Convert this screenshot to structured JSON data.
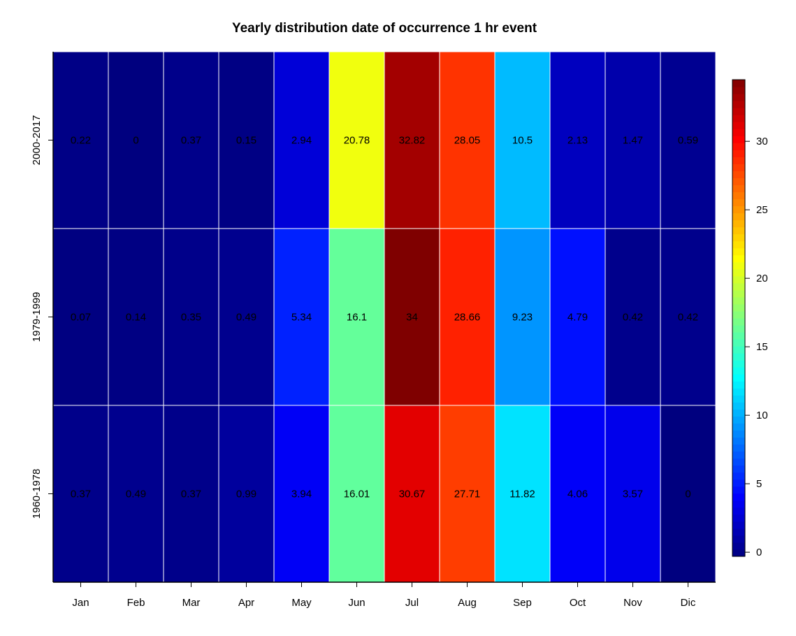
{
  "chart_data": {
    "type": "heatmap",
    "title": "Yearly distribution date of occurrence 1 hr event",
    "xlabel": "",
    "ylabel": "",
    "x_categories": [
      "Jan",
      "Feb",
      "Mar",
      "Apr",
      "May",
      "Jun",
      "Jul",
      "Aug",
      "Sep",
      "Oct",
      "Nov",
      "Dic"
    ],
    "y_categories": [
      "2000-2017",
      "1979-1999",
      "1960-1978"
    ],
    "values": [
      [
        0.22,
        0,
        0.37,
        0.15,
        2.94,
        20.78,
        32.82,
        28.05,
        10.5,
        2.13,
        1.47,
        0.59
      ],
      [
        0.07,
        0.14,
        0.35,
        0.49,
        5.34,
        16.1,
        34,
        28.66,
        9.23,
        4.79,
        0.42,
        0.42
      ],
      [
        0.37,
        0.49,
        0.37,
        0.99,
        3.94,
        16.01,
        30.67,
        27.71,
        11.82,
        4.06,
        3.57,
        0
      ]
    ],
    "cell_labels": [
      [
        "0.22",
        "0",
        "0.37",
        "0.15",
        "2.94",
        "20.78",
        "32.82",
        "28.05",
        "10.5",
        "2.13",
        "1.47",
        "0.59"
      ],
      [
        "0.07",
        "0.14",
        "0.35",
        "0.49",
        "5.34",
        "16.1",
        "34",
        "28.66",
        "9.23",
        "4.79",
        "0.42",
        "0.42"
      ],
      [
        "0.37",
        "0.49",
        "0.37",
        "0.99",
        "3.94",
        "16.01",
        "30.67",
        "27.71",
        "11.82",
        "4.06",
        "3.57",
        "0"
      ]
    ],
    "colorbar": {
      "min": 0,
      "max": 34,
      "ticks": [
        0,
        5,
        10,
        15,
        20,
        25,
        30
      ],
      "tick_labels": [
        "0",
        "5",
        "10",
        "15",
        "20",
        "25",
        "30"
      ],
      "palette": [
        "#00007F",
        "#0000FF",
        "#007FFF",
        "#00FFFF",
        "#7FFF7F",
        "#FFFF00",
        "#FF7F00",
        "#FF0000",
        "#7F0000"
      ]
    },
    "grid": true,
    "grid_color": "#ffffff"
  }
}
